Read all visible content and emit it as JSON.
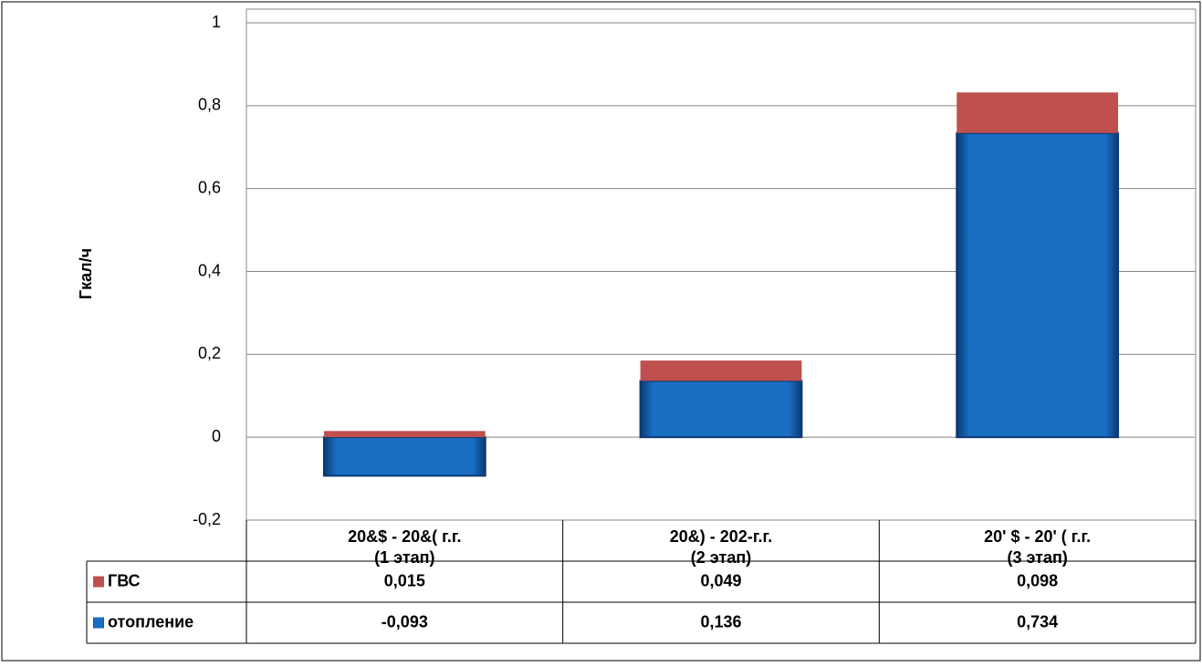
{
  "chart_data": {
    "type": "stacked-bar",
    "y_label": "Гкал/ч",
    "categories": [
      [
        "20&$ - 20&( г.г.",
        "(1 этап)"
      ],
      [
        "20&) - 202-г.г.",
        "(2 этап)"
      ],
      [
        "20' $ - 20' ( г.г.",
        "(3 этап)"
      ]
    ],
    "series": [
      {
        "name": "отопление",
        "color": "#1a6fc4",
        "values": [
          -0.093,
          0.136,
          0.734
        ],
        "value_labels": [
          "-0,093",
          "0,136",
          "0,734"
        ]
      },
      {
        "name": "ГВС",
        "color": "#c0504d",
        "values": [
          0.015,
          0.049,
          0.098
        ],
        "value_labels": [
          "0,015",
          "0,049",
          "0,098"
        ]
      }
    ],
    "ylim": [
      -0.2,
      1
    ],
    "yticks": [
      {
        "value": -0.2,
        "label": "-0,2"
      },
      0,
      {
        "value": 0.2,
        "label": "0,2"
      },
      {
        "value": 0.4,
        "label": "0,4"
      },
      {
        "value": 0.6,
        "label": "0,6"
      },
      {
        "value": 0.8,
        "label": "0,8"
      },
      1
    ],
    "grid": true
  }
}
